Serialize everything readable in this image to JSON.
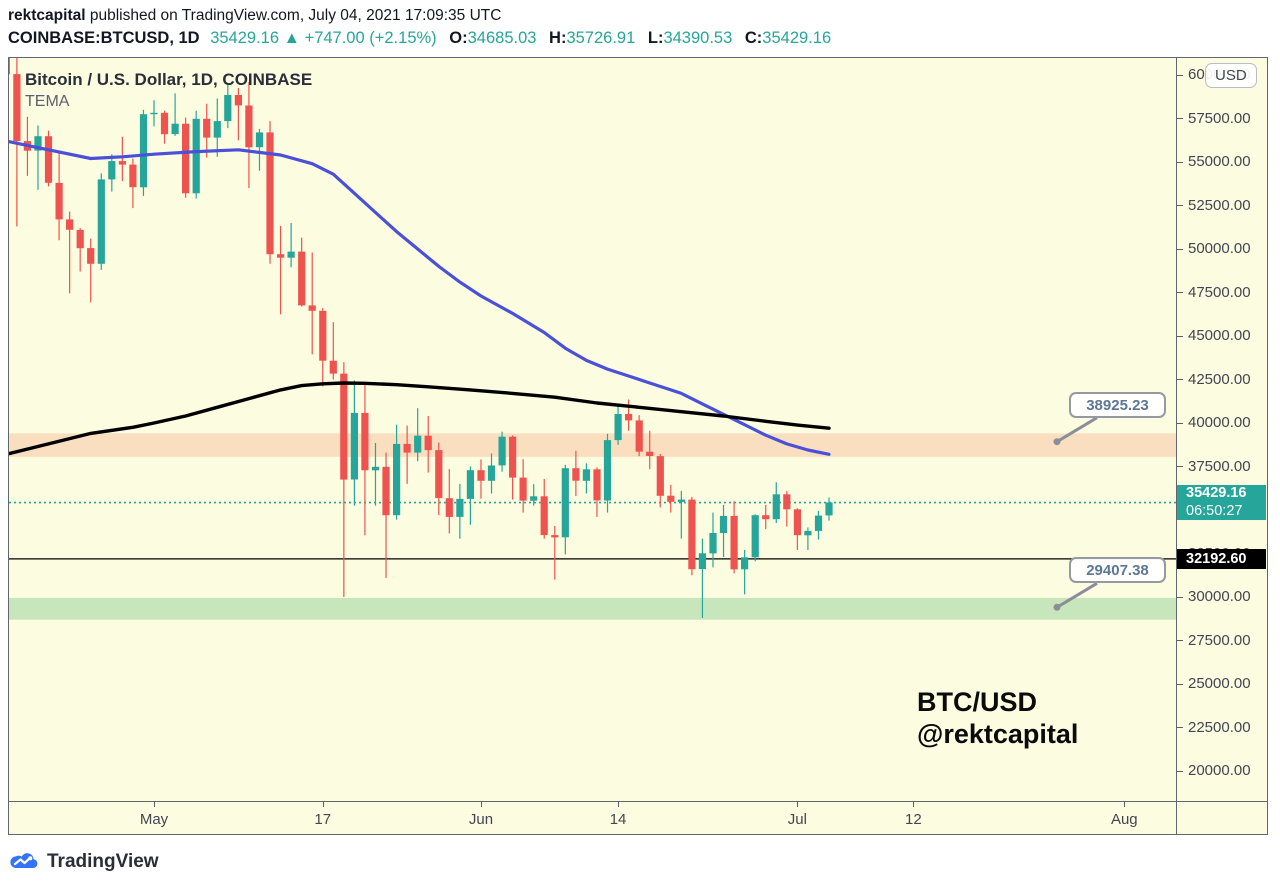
{
  "header": {
    "user": "rektcapital",
    "pub_rest": " published on TradingView.com, July 04, 2021 17:09:35 UTC",
    "symbol": "COINBASE:BTCUSD, 1D",
    "last": "35429.16",
    "up_arrow": "▲",
    "change": "+747.00 (+2.15%)",
    "o_label": "O:",
    "o": "34685.03",
    "h_label": "H:",
    "h": "35726.91",
    "l_label": "L:",
    "l": "34390.53",
    "c_label": "C:",
    "c": "35429.16"
  },
  "legend": {
    "title": "Bitcoin / U.S. Dollar, 1D, COINBASE",
    "indicator": "TEMA"
  },
  "watermark": {
    "line1": "BTC/USD",
    "line2": "@rektcapital"
  },
  "price_axis": {
    "currency_button": "USD"
  },
  "callouts": [
    {
      "text": "38925.23",
      "value": 38925.23
    },
    {
      "text": "29407.38",
      "value": 29407.38
    }
  ],
  "footer": {
    "brand": "TradingView"
  },
  "colors": {
    "up": "#26a69a",
    "down": "#ef5350",
    "background": "#fcfce1",
    "ma_blue": "#4b50d8",
    "tema_black": "#000000",
    "band_orange": "#f9dfbf",
    "band_green": "#c8e6bc",
    "callout_gray": "#8b8e98"
  },
  "chart_data": {
    "type": "candlestick",
    "title": "Bitcoin / U.S. Dollar, 1D, COINBASE",
    "ylabel": "USD",
    "ylim": [
      19000,
      61000
    ],
    "grid": false,
    "price_ticks": [
      60000,
      57500,
      55000,
      52500,
      50000,
      47500,
      45000,
      42500,
      40000,
      37500,
      35000,
      32500,
      30000,
      27500,
      25000,
      22500,
      20000
    ],
    "time_ticks": [
      {
        "label": "May",
        "i": 14
      },
      {
        "label": "17",
        "i": 30
      },
      {
        "label": "Jun",
        "i": 45
      },
      {
        "label": "14",
        "i": 58
      },
      {
        "label": "Jul",
        "i": 75
      },
      {
        "label": "12",
        "i": 86
      },
      {
        "label": "Aug",
        "i": 106
      }
    ],
    "bands": [
      {
        "name": "resistance-zone",
        "top": 39400,
        "bottom": 38050,
        "color": "#f9dfbf"
      },
      {
        "name": "support-zone",
        "top": 29950,
        "bottom": 28700,
        "color": "#c8e6bc"
      }
    ],
    "price_lines": {
      "current": {
        "value": 35429.16,
        "label": "35429.16",
        "countdown": "06:50:27"
      },
      "level": {
        "value": 32192.6,
        "label": "32192.60"
      }
    },
    "candle_format": [
      "date",
      "open",
      "high",
      "low",
      "close"
    ],
    "candles": [
      [
        "Apr 17",
        61450,
        62600,
        59600,
        60050
      ],
      [
        "Apr 18",
        60050,
        61150,
        51300,
        56200
      ],
      [
        "Apr 19",
        56200,
        57600,
        54200,
        55650
      ],
      [
        "Apr 20",
        55650,
        57100,
        53400,
        56480
      ],
      [
        "Apr 21",
        56480,
        56800,
        53600,
        53800
      ],
      [
        "Apr 22",
        53800,
        55500,
        50500,
        51700
      ],
      [
        "Apr 23",
        51700,
        52150,
        47450,
        51100
      ],
      [
        "Apr 24",
        51100,
        51200,
        48700,
        50050
      ],
      [
        "Apr 25",
        50050,
        50600,
        46930,
        49150
      ],
      [
        "Apr 26",
        49150,
        54350,
        48800,
        54000
      ],
      [
        "Apr 27",
        54000,
        55450,
        53300,
        55050
      ],
      [
        "Apr 28",
        55050,
        56450,
        53900,
        54850
      ],
      [
        "Apr 29",
        54850,
        55200,
        52350,
        53550
      ],
      [
        "Apr 30",
        53550,
        58000,
        53050,
        57750
      ],
      [
        "May 1",
        57750,
        58550,
        57050,
        57830
      ],
      [
        "May 2",
        57830,
        57950,
        56050,
        56600
      ],
      [
        "May 3",
        56600,
        58950,
        56500,
        57200
      ],
      [
        "May 4",
        57200,
        57550,
        52950,
        53200
      ],
      [
        "May 5",
        53200,
        57950,
        52900,
        57480
      ],
      [
        "May 6",
        57480,
        58350,
        55250,
        56400
      ],
      [
        "May 7",
        56400,
        58650,
        55300,
        57350
      ],
      [
        "May 8",
        57350,
        59500,
        56950,
        58850
      ],
      [
        "May 9",
        58850,
        59250,
        56250,
        58250
      ],
      [
        "May 10",
        58250,
        59600,
        53500,
        55850
      ],
      [
        "May 11",
        55850,
        56900,
        54500,
        56700
      ],
      [
        "May 12",
        56700,
        57350,
        49150,
        49700
      ],
      [
        "May 13",
        49700,
        51330,
        46250,
        49500
      ],
      [
        "May 14",
        49500,
        51500,
        48950,
        49850
      ],
      [
        "May 15",
        49850,
        50650,
        46700,
        46760
      ],
      [
        "May 16",
        46760,
        49800,
        43950,
        46450
      ],
      [
        "May 17",
        46450,
        46600,
        42100,
        43580
      ],
      [
        "May 18",
        43580,
        45800,
        42500,
        42840
      ],
      [
        "May 19",
        42840,
        43500,
        30000,
        36750
      ],
      [
        "May 20",
        36750,
        42450,
        35250,
        40580
      ],
      [
        "May 21",
        40580,
        42200,
        33550,
        37280
      ],
      [
        "May 22",
        37280,
        38850,
        35250,
        37480
      ],
      [
        "May 23",
        37480,
        38300,
        31100,
        34700
      ],
      [
        "May 24",
        34700,
        39900,
        34450,
        38800
      ],
      [
        "May 25",
        38800,
        39850,
        36500,
        38300
      ],
      [
        "May 26",
        38300,
        40850,
        37800,
        39270
      ],
      [
        "May 27",
        39270,
        40400,
        37150,
        38440
      ],
      [
        "May 28",
        38440,
        38880,
        34700,
        35680
      ],
      [
        "May 29",
        35680,
        37350,
        33650,
        34605
      ],
      [
        "May 30",
        34605,
        36500,
        33350,
        35640
      ],
      [
        "May 31",
        35640,
        37500,
        34150,
        37290
      ],
      [
        "Jun 1",
        37290,
        37900,
        35650,
        36680
      ],
      [
        "Jun 2",
        36680,
        38250,
        35950,
        37560
      ],
      [
        "Jun 3",
        37560,
        39500,
        37200,
        39210
      ],
      [
        "Jun 4",
        39210,
        39290,
        35600,
        36860
      ],
      [
        "Jun 5",
        36860,
        37920,
        34850,
        35540
      ],
      [
        "Jun 6",
        35540,
        36480,
        35250,
        35790
      ],
      [
        "Jun 7",
        35790,
        36790,
        33350,
        33560
      ],
      [
        "Jun 8",
        33560,
        34080,
        31000,
        33430
      ],
      [
        "Jun 9",
        33430,
        37600,
        32450,
        37400
      ],
      [
        "Jun 10",
        37400,
        38400,
        35800,
        36680
      ],
      [
        "Jun 11",
        36680,
        37680,
        35950,
        37340
      ],
      [
        "Jun 12",
        37340,
        37450,
        34600,
        35550
      ],
      [
        "Jun 13",
        35550,
        39380,
        34850,
        39020
      ],
      [
        "Jun 14",
        39020,
        41000,
        38750,
        40520
      ],
      [
        "Jun 15",
        40520,
        41350,
        39550,
        40150
      ],
      [
        "Jun 16",
        40150,
        40450,
        38100,
        38350
      ],
      [
        "Jun 17",
        38350,
        39550,
        37350,
        38100
      ],
      [
        "Jun 18",
        38100,
        38210,
        35150,
        35820
      ],
      [
        "Jun 19",
        35820,
        36450,
        34850,
        35470
      ],
      [
        "Jun 20",
        35470,
        36100,
        33350,
        35600
      ],
      [
        "Jun 21",
        35600,
        35750,
        31250,
        31600
      ],
      [
        "Jun 22",
        31600,
        33350,
        28800,
        32510
      ],
      [
        "Jun 23",
        32510,
        34850,
        31700,
        33680
      ],
      [
        "Jun 24",
        33680,
        35300,
        32300,
        34663
      ],
      [
        "Jun 25",
        34663,
        35500,
        31350,
        31590
      ],
      [
        "Jun 26",
        31590,
        32700,
        30150,
        32280
      ],
      [
        "Jun 27",
        32280,
        34750,
        32050,
        34700
      ],
      [
        "Jun 28",
        34700,
        35300,
        33900,
        34470
      ],
      [
        "Jun 29",
        34470,
        36600,
        34250,
        35900
      ],
      [
        "Jun 30",
        35900,
        36100,
        34050,
        35040
      ],
      [
        "Jul 1",
        35040,
        35100,
        32700,
        33550
      ],
      [
        "Jul 2",
        33550,
        34000,
        32700,
        33800
      ],
      [
        "Jul 3",
        33800,
        34950,
        33300,
        34680
      ],
      [
        "Jul 4",
        34685,
        35727,
        34391,
        35429.16
      ]
    ],
    "overlays": [
      {
        "name": "ma-blue",
        "color": "#4b50d8",
        "width": 3.2,
        "points": [
          [
            0,
            56200
          ],
          [
            4,
            55700
          ],
          [
            8,
            55200
          ],
          [
            11,
            55300
          ],
          [
            14,
            55450
          ],
          [
            18,
            55600
          ],
          [
            22,
            55700
          ],
          [
            26,
            55400
          ],
          [
            29,
            54900
          ],
          [
            31,
            54300
          ],
          [
            33,
            53200
          ],
          [
            35,
            52100
          ],
          [
            37,
            51000
          ],
          [
            39,
            50000
          ],
          [
            41,
            49000
          ],
          [
            43,
            48100
          ],
          [
            45,
            47300
          ],
          [
            48,
            46300
          ],
          [
            51,
            45200
          ],
          [
            53,
            44300
          ],
          [
            55,
            43600
          ],
          [
            57,
            43100
          ],
          [
            59,
            42700
          ],
          [
            61,
            42300
          ],
          [
            63,
            41900
          ],
          [
            64,
            41700
          ],
          [
            66,
            41100
          ],
          [
            68,
            40500
          ],
          [
            70,
            39900
          ],
          [
            72,
            39300
          ],
          [
            74,
            38800
          ],
          [
            76,
            38450
          ],
          [
            78,
            38200
          ]
        ]
      },
      {
        "name": "tema-black",
        "color": "#000000",
        "width": 3.4,
        "points": [
          [
            0,
            38200
          ],
          [
            4,
            38800
          ],
          [
            8,
            39400
          ],
          [
            12,
            39750
          ],
          [
            14,
            40000
          ],
          [
            17,
            40400
          ],
          [
            20,
            40900
          ],
          [
            23,
            41400
          ],
          [
            26,
            41900
          ],
          [
            28,
            42150
          ],
          [
            30,
            42250
          ],
          [
            32,
            42300
          ],
          [
            34,
            42280
          ],
          [
            37,
            42200
          ],
          [
            40,
            42080
          ],
          [
            44,
            41900
          ],
          [
            48,
            41700
          ],
          [
            52,
            41480
          ],
          [
            56,
            41150
          ],
          [
            60,
            40900
          ],
          [
            64,
            40650
          ],
          [
            68,
            40400
          ],
          [
            72,
            40100
          ],
          [
            75,
            39880
          ],
          [
            78,
            39700
          ]
        ]
      }
    ]
  }
}
